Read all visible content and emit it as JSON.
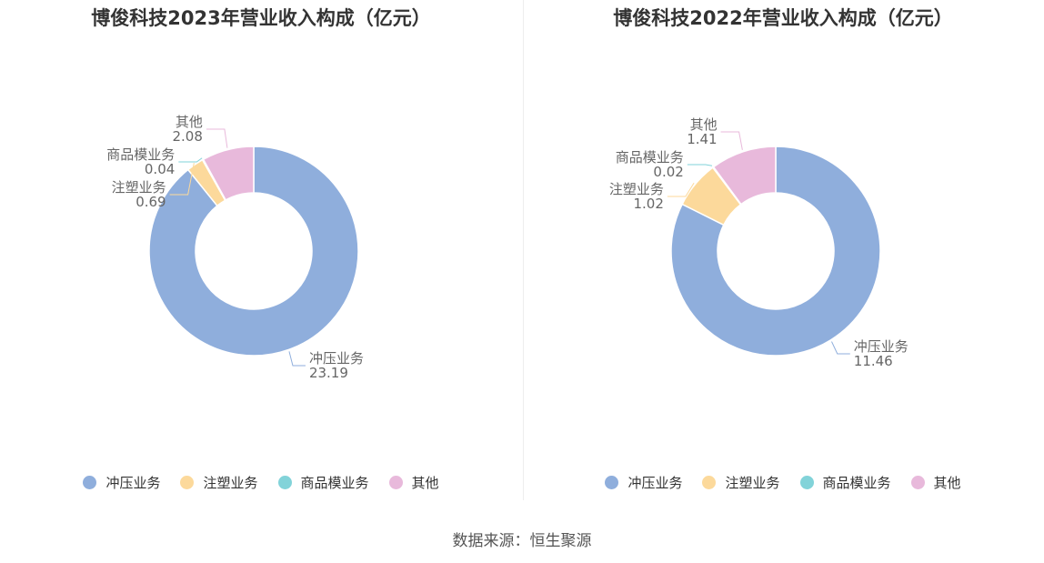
{
  "chart_data": [
    {
      "type": "pie",
      "title": "博俊科技2023年营业收入构成（亿元）",
      "categories": [
        "冲压业务",
        "注塑业务",
        "商品模业务",
        "其他"
      ],
      "values": [
        23.19,
        0.69,
        0.04,
        2.08
      ],
      "value_labels": [
        "23.19",
        "0.69",
        "0.04",
        "2.08"
      ],
      "colors": [
        "#8FAEDC",
        "#FCD99B",
        "#82D3D9",
        "#E8B9DB"
      ],
      "legend_position": "bottom"
    },
    {
      "type": "pie",
      "title": "博俊科技2022年营业收入构成（亿元）",
      "categories": [
        "冲压业务",
        "注塑业务",
        "商品模业务",
        "其他"
      ],
      "values": [
        11.46,
        1.02,
        0.02,
        1.41
      ],
      "value_labels": [
        "11.46",
        "1.02",
        "0.02",
        "1.41"
      ],
      "colors": [
        "#8FAEDC",
        "#FCD99B",
        "#82D3D9",
        "#E8B9DB"
      ],
      "legend_position": "bottom"
    }
  ],
  "source": "数据来源：恒生聚源"
}
